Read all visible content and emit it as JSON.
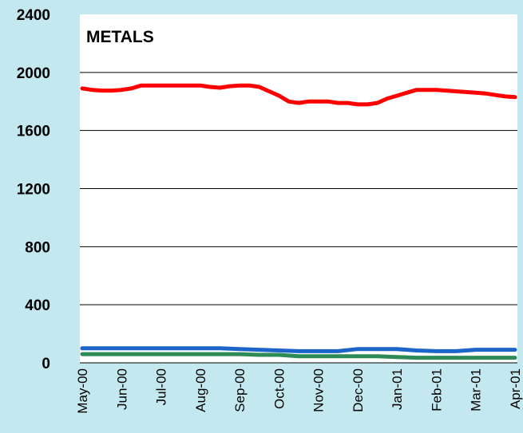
{
  "chart_data": {
    "type": "line",
    "title": "METALS",
    "xlabel": "",
    "ylabel": "",
    "ylim": [
      0,
      2400
    ],
    "yticks": [
      "0",
      "400",
      "800",
      "1200",
      "1600",
      "2000",
      "2400"
    ],
    "ytick_values": [
      0,
      400,
      800,
      1200,
      1600,
      2000,
      2400
    ],
    "categories": [
      "May-00",
      "Jun-00",
      "Jul-00",
      "Aug-00",
      "Sep-00",
      "Oct-00",
      "Nov-00",
      "Dec-00",
      "Jan-01",
      "Feb-01",
      "Mar-01",
      "Apr-01"
    ],
    "grid": true,
    "legend": "none",
    "series": [
      {
        "color": "#ff0000",
        "x": [
          0,
          0.25,
          0.5,
          0.75,
          1,
          1.25,
          1.5,
          1.75,
          2,
          2.25,
          2.5,
          2.75,
          3,
          3.25,
          3.5,
          3.75,
          4,
          4.25,
          4.5,
          4.75,
          5,
          5.25,
          5.5,
          5.75,
          6,
          6.25,
          6.5,
          6.75,
          7,
          7.25,
          7.5,
          7.75,
          8,
          8.25,
          8.5,
          8.75,
          9,
          9.25,
          9.5,
          9.75,
          10,
          10.25,
          10.5,
          10.75,
          11
        ],
        "values": [
          1890,
          1880,
          1875,
          1875,
          1880,
          1890,
          1910,
          1910,
          1910,
          1910,
          1910,
          1910,
          1910,
          1900,
          1895,
          1905,
          1910,
          1910,
          1900,
          1870,
          1840,
          1800,
          1790,
          1800,
          1800,
          1800,
          1790,
          1790,
          1780,
          1780,
          1790,
          1820,
          1840,
          1860,
          1880,
          1880,
          1880,
          1875,
          1870,
          1865,
          1860,
          1855,
          1845,
          1835,
          1830
        ]
      },
      {
        "color": "#1c64c8",
        "x": [
          0,
          0.5,
          1,
          1.5,
          2,
          2.5,
          3,
          3.5,
          4,
          4.5,
          5,
          5.5,
          6,
          6.5,
          7,
          7.5,
          8,
          8.5,
          9,
          9.5,
          10,
          10.5,
          11
        ],
        "values": [
          100,
          100,
          100,
          100,
          100,
          100,
          100,
          100,
          95,
          90,
          85,
          80,
          80,
          80,
          95,
          95,
          95,
          85,
          80,
          80,
          90,
          90,
          90
        ]
      },
      {
        "color": "#2e8b57",
        "x": [
          0,
          1,
          2,
          3,
          4,
          4.5,
          5,
          5.5,
          6,
          6.5,
          7,
          7.5,
          8,
          8.5,
          9,
          9.5,
          10,
          10.5,
          11
        ],
        "values": [
          60,
          60,
          60,
          60,
          60,
          55,
          55,
          45,
          45,
          45,
          45,
          45,
          40,
          35,
          35,
          35,
          35,
          35,
          35
        ]
      }
    ]
  }
}
